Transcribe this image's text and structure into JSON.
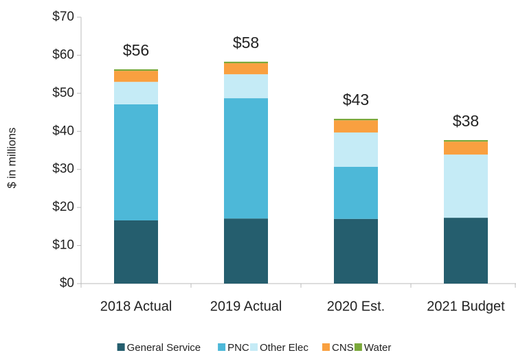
{
  "chart_data": {
    "type": "stacked_bar",
    "ylabel": "$ in millions",
    "categories": [
      "2018 Actual",
      "2019 Actual",
      "2020 Est.",
      "2021 Budget"
    ],
    "series": [
      {
        "name": "General Service",
        "color": "#255e6e",
        "values": [
          16.6,
          17.1,
          17.0,
          17.3
        ]
      },
      {
        "name": "PNC",
        "color": "#4db8d8",
        "values": [
          30.5,
          31.6,
          13.7,
          0
        ]
      },
      {
        "name": "Other Elec",
        "color": "#c5ebf6",
        "values": [
          5.9,
          6.3,
          9.0,
          16.6
        ]
      },
      {
        "name": "CNS",
        "color": "#f9a040",
        "values": [
          2.9,
          2.9,
          3.2,
          3.4
        ]
      },
      {
        "name": "Water",
        "color": "#7aa83a",
        "values": [
          0.4,
          0.4,
          0.4,
          0.4
        ]
      }
    ],
    "total_labels": [
      "$56",
      "$58",
      "$43",
      "$38"
    ],
    "ylim": [
      0,
      70
    ],
    "yticks": [
      {
        "value": 0,
        "label": "$0"
      },
      {
        "value": 10,
        "label": "$10"
      },
      {
        "value": 20,
        "label": "$20"
      },
      {
        "value": 30,
        "label": "$30"
      },
      {
        "value": 40,
        "label": "$40"
      },
      {
        "value": 50,
        "label": "$50"
      },
      {
        "value": 60,
        "label": "$60"
      },
      {
        "value": 70,
        "label": "$70"
      }
    ],
    "legend": "bottom"
  }
}
